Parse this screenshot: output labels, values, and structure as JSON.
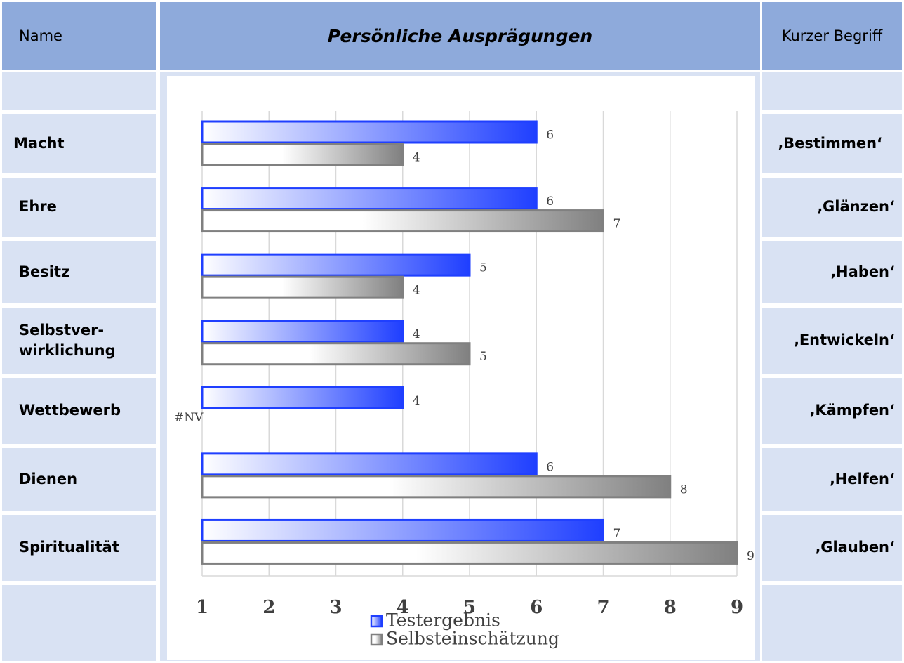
{
  "table": {
    "header": [
      "Name",
      "Persönliche Ausprägungen",
      "Kurzer Begriff"
    ],
    "names": [
      "Macht",
      "Ehre",
      "Besitz",
      "Selbstver-\nwirklichung",
      "Wettbewerb",
      "Dienen",
      "Spiritualität"
    ],
    "terms": [
      "‚Bestimmen‘",
      "‚Glänzen‘",
      "‚Haben‘",
      "‚Entwickeln‘",
      "‚Kämpfen‘",
      "‚Helfen‘",
      "‚Glauben‘"
    ]
  },
  "chart_data": {
    "type": "hbar",
    "categories": [
      "Macht",
      "Ehre",
      "Besitz",
      "Selbstverwirklichung",
      "Wettbewerb",
      "Dienen",
      "Spiritualität"
    ],
    "series": [
      {
        "name": "Testergebnis",
        "color": "#1f3fff",
        "values": [
          6,
          6,
          5,
          4,
          4,
          6,
          7
        ]
      },
      {
        "name": "Selbsteinschätzung",
        "color": "#808080",
        "values": [
          4,
          7,
          4,
          5,
          null,
          8,
          9
        ],
        "value_labels": [
          "4",
          "7",
          "4",
          "5",
          "#NV",
          "8",
          "9"
        ]
      }
    ],
    "xlim": [
      1,
      9
    ],
    "xticks": [
      1,
      2,
      3,
      4,
      5,
      6,
      7,
      8,
      9
    ],
    "grid": true
  }
}
